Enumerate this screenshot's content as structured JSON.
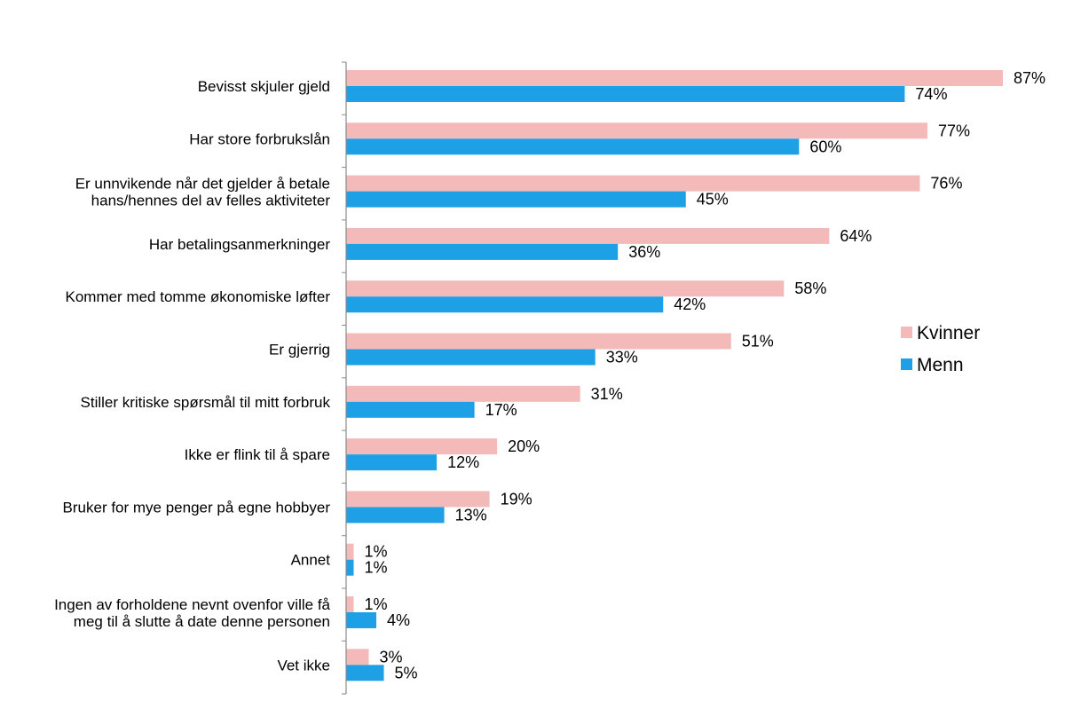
{
  "chart_data": {
    "type": "bar",
    "orientation": "horizontal",
    "categories": [
      [
        "Bevisst skjuler gjeld"
      ],
      [
        "Har store forbrukslån"
      ],
      [
        "Er unnvikende når det gjelder å betale",
        "hans/hennes del av felles aktiviteter"
      ],
      [
        "Har betalingsanmerkninger"
      ],
      [
        "Kommer med tomme økonomiske løfter"
      ],
      [
        "Er gjerrig"
      ],
      [
        "Stiller kritiske spørsmål til mitt forbruk"
      ],
      [
        "Ikke er flink til å spare"
      ],
      [
        "Bruker for mye penger på egne hobbyer"
      ],
      [
        "Annet"
      ],
      [
        "Ingen av forholdene nevnt ovenfor ville få",
        "meg til å slutte å date denne personen"
      ],
      [
        "Vet ikke"
      ]
    ],
    "series": [
      {
        "name": "Kvinner",
        "color": "#f4b9b9",
        "values": [
          87,
          77,
          76,
          64,
          58,
          51,
          31,
          20,
          19,
          1,
          1,
          3
        ],
        "labels": [
          "87%",
          "77%",
          "76%",
          "64%",
          "58%",
          "51%",
          "31%",
          "20%",
          "19%",
          "1%",
          "1%",
          "3%"
        ]
      },
      {
        "name": "Menn",
        "color": "#1ea0e6",
        "values": [
          74,
          60,
          45,
          36,
          42,
          33,
          17,
          12,
          13,
          1,
          4,
          5
        ],
        "labels": [
          "74%",
          "60%",
          "45%",
          "36%",
          "42%",
          "33%",
          "17%",
          "12%",
          "13%",
          "1%",
          "4%",
          "5%"
        ]
      }
    ],
    "xlim": [
      0,
      87
    ],
    "grid": false,
    "legend": "right"
  }
}
